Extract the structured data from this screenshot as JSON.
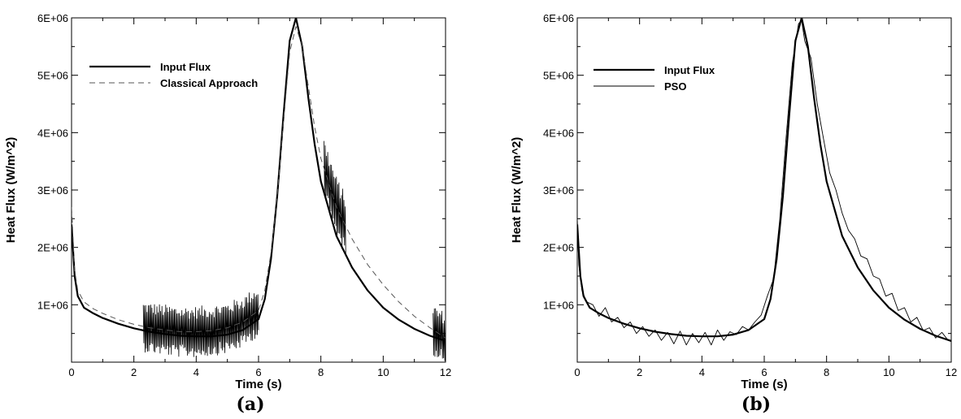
{
  "chart_data": [
    {
      "type": "line",
      "panel_label": "(a)",
      "xlabel": "Time (s)",
      "ylabel": "Heat Flux (W/m^2)",
      "xlim": [
        0,
        12
      ],
      "ylim": [
        0,
        6000000
      ],
      "x_ticks": [
        0,
        2,
        4,
        6,
        8,
        10,
        12
      ],
      "x_tick_labels": [
        "0",
        "2",
        "4",
        "6",
        "8",
        "10",
        "12"
      ],
      "y_ticks": [
        1000000,
        2000000,
        3000000,
        4000000,
        5000000,
        6000000
      ],
      "y_tick_labels": [
        "1E+06",
        "2E+06",
        "3E+06",
        "4E+06",
        "5E+06",
        "6E+06"
      ],
      "grid": false,
      "legend_position": "top-left",
      "series": [
        {
          "name": "Input Flux",
          "style": "solid-thick",
          "x": [
            0,
            0.1,
            0.2,
            0.4,
            0.7,
            1.0,
            1.5,
            2.0,
            2.5,
            3.0,
            3.5,
            4.0,
            4.5,
            5.0,
            5.5,
            6.0,
            6.2,
            6.4,
            6.6,
            6.8,
            7.0,
            7.2,
            7.4,
            7.6,
            7.8,
            8.0,
            8.5,
            9.0,
            9.5,
            10.0,
            10.5,
            11.0,
            11.5,
            12.0
          ],
          "y": [
            2400000,
            1500000,
            1150000,
            950000,
            850000,
            770000,
            670000,
            590000,
            530000,
            490000,
            460000,
            450000,
            450000,
            480000,
            560000,
            750000,
            1100000,
            1800000,
            2900000,
            4300000,
            5600000,
            6000000,
            5500000,
            4600000,
            3800000,
            3150000,
            2200000,
            1650000,
            1250000,
            950000,
            740000,
            580000,
            460000,
            370000
          ]
        },
        {
          "name": "Classical Approach",
          "style": "dashed",
          "x": [
            0,
            0.1,
            0.2,
            0.4,
            0.7,
            1.0,
            1.5,
            2.0,
            2.5,
            3.0,
            3.5,
            4.0,
            4.5,
            5.0,
            5.5,
            6.0,
            6.2,
            6.4,
            6.6,
            6.8,
            7.0,
            7.2,
            7.4,
            7.6,
            7.8,
            8.0,
            8.5,
            9.0,
            9.5,
            10.0,
            10.5,
            11.0,
            11.5,
            12.0
          ],
          "y": [
            2700000,
            1600000,
            1250000,
            1050000,
            930000,
            850000,
            740000,
            660000,
            600000,
            560000,
            530000,
            530000,
            550000,
            600000,
            700000,
            900000,
            1250000,
            1900000,
            2900000,
            4200000,
            5400000,
            5850000,
            5500000,
            4800000,
            4100000,
            3550000,
            2700000,
            2150000,
            1700000,
            1350000,
            1050000,
            800000,
            600000,
            420000
          ]
        }
      ],
      "noise_bands": [
        {
          "x_start": 2.3,
          "x_end": 6.0,
          "amplitude": 450000
        },
        {
          "x_start": 8.1,
          "x_end": 8.8,
          "amplitude": 550000
        },
        {
          "x_start": 11.6,
          "x_end": 12.0,
          "amplitude": 450000
        }
      ]
    },
    {
      "type": "line",
      "panel_label": "(b)",
      "xlabel": "Time (s)",
      "ylabel": "Heat Flux (W/m^2)",
      "xlim": [
        0,
        12
      ],
      "ylim": [
        0,
        6000000
      ],
      "x_ticks": [
        0,
        2,
        4,
        6,
        8,
        10,
        12
      ],
      "x_tick_labels": [
        "0",
        "2",
        "4",
        "6",
        "8",
        "10",
        "12"
      ],
      "y_ticks": [
        1000000,
        2000000,
        3000000,
        4000000,
        5000000,
        6000000
      ],
      "y_tick_labels": [
        "1E+06",
        "2E+06",
        "3E+06",
        "4E+06",
        "5E+06",
        "6E+06"
      ],
      "grid": false,
      "legend_position": "top-left",
      "series": [
        {
          "name": "Input Flux",
          "style": "solid-thick",
          "x": [
            0,
            0.1,
            0.2,
            0.4,
            0.7,
            1.0,
            1.5,
            2.0,
            2.5,
            3.0,
            3.5,
            4.0,
            4.5,
            5.0,
            5.5,
            6.0,
            6.2,
            6.4,
            6.6,
            6.8,
            7.0,
            7.2,
            7.4,
            7.6,
            7.8,
            8.0,
            8.5,
            9.0,
            9.5,
            10.0,
            10.5,
            11.0,
            11.5,
            12.0
          ],
          "y": [
            2400000,
            1500000,
            1150000,
            950000,
            850000,
            770000,
            670000,
            590000,
            530000,
            490000,
            460000,
            450000,
            450000,
            480000,
            560000,
            750000,
            1100000,
            1800000,
            2900000,
            4300000,
            5600000,
            6000000,
            5500000,
            4600000,
            3800000,
            3150000,
            2200000,
            1650000,
            1250000,
            950000,
            740000,
            580000,
            460000,
            370000
          ]
        },
        {
          "name": "PSO",
          "style": "solid-thin",
          "x": [
            0,
            0.05,
            0.15,
            0.3,
            0.5,
            0.7,
            0.9,
            1.1,
            1.3,
            1.5,
            1.7,
            1.9,
            2.1,
            2.3,
            2.5,
            2.7,
            2.9,
            3.1,
            3.3,
            3.5,
            3.7,
            3.9,
            4.1,
            4.3,
            4.5,
            4.7,
            4.9,
            5.1,
            5.3,
            5.5,
            5.7,
            5.9,
            6.1,
            6.3,
            6.5,
            6.7,
            6.9,
            7.1,
            7.2,
            7.3,
            7.5,
            7.7,
            7.9,
            8.1,
            8.3,
            8.5,
            8.7,
            8.9,
            9.1,
            9.3,
            9.5,
            9.7,
            9.9,
            10.1,
            10.3,
            10.5,
            10.7,
            10.9,
            11.1,
            11.3,
            11.5,
            11.7,
            11.9,
            12.0
          ],
          "y": [
            2500000,
            1700000,
            1250000,
            1050000,
            1000000,
            800000,
            950000,
            700000,
            780000,
            600000,
            700000,
            500000,
            620000,
            450000,
            560000,
            380000,
            520000,
            320000,
            540000,
            300000,
            500000,
            340000,
            520000,
            300000,
            560000,
            380000,
            530000,
            480000,
            620000,
            560000,
            700000,
            820000,
            1150000,
            1450000,
            2500000,
            3900000,
            5200000,
            5900000,
            5950000,
            5600000,
            5300000,
            4500000,
            3900000,
            3300000,
            3000000,
            2600000,
            2300000,
            2150000,
            1850000,
            1800000,
            1500000,
            1450000,
            1150000,
            1200000,
            900000,
            950000,
            700000,
            780000,
            550000,
            600000,
            420000,
            520000,
            380000,
            360000
          ]
        }
      ]
    }
  ]
}
